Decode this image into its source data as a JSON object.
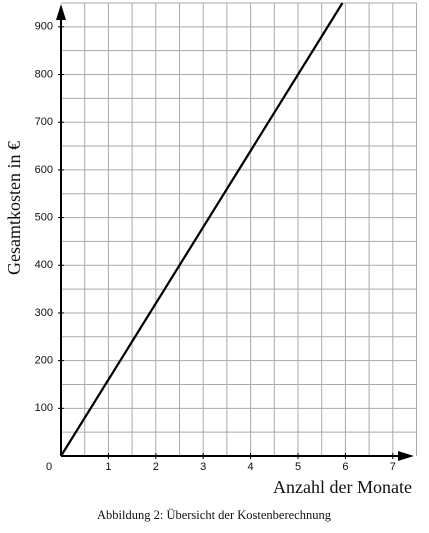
{
  "chart_data": {
    "type": "line",
    "y_label": "Gesamtkosten in €",
    "x_label": "Anzahl der Monate",
    "caption": "Abbildung 2: Übersicht der Kostenberechnung",
    "x": [
      0,
      5.9375
    ],
    "series": [
      {
        "color": "#000000",
        "values": [
          0,
          950
        ]
      }
    ],
    "xlim": [
      0,
      7.5
    ],
    "ylim": [
      0,
      950
    ],
    "xticks": [
      0,
      1,
      2,
      3,
      4,
      5,
      6,
      7
    ],
    "yticks": [
      100,
      200,
      300,
      400,
      500,
      600,
      700,
      800,
      900
    ],
    "grid": true,
    "xgrid_step": 0.5,
    "ygrid_step": 50
  }
}
